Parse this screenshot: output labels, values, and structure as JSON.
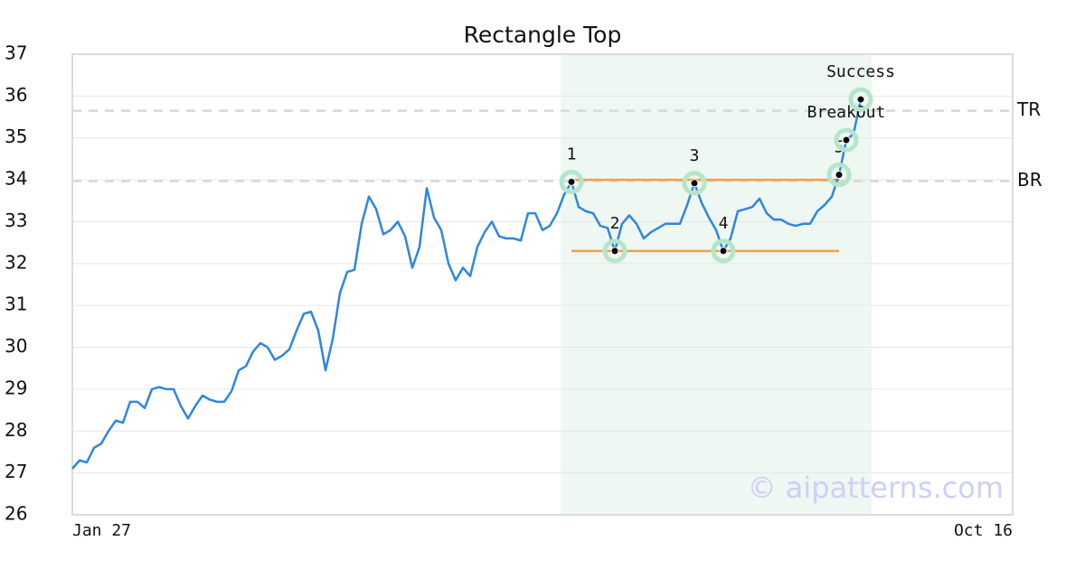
{
  "chart_data": {
    "type": "line",
    "title": "Rectangle Top",
    "categories": [
      "Jan 27",
      null,
      null,
      null,
      null,
      null,
      null,
      null,
      null,
      null,
      null,
      null,
      null,
      null,
      null,
      null,
      null,
      null,
      null,
      null,
      null,
      null,
      null,
      null,
      null,
      null,
      null,
      null,
      null,
      null,
      null,
      null,
      null,
      null,
      null,
      null,
      null,
      null,
      null,
      null,
      null,
      null,
      null,
      null,
      null,
      null,
      null,
      null,
      null,
      null,
      null,
      null,
      null,
      null,
      null,
      null,
      null,
      null,
      null,
      null,
      null,
      null,
      null,
      null,
      null,
      null,
      null,
      null,
      null,
      null,
      null,
      null,
      null,
      null,
      null,
      null,
      null,
      null,
      null,
      null,
      null,
      null,
      null,
      null,
      null,
      null,
      null,
      null,
      null,
      null,
      null,
      null,
      null,
      null,
      null,
      null,
      null,
      null,
      null,
      null,
      null,
      null,
      null,
      null,
      null,
      null,
      null,
      null,
      null,
      null,
      null,
      null,
      null,
      null,
      null,
      null,
      null,
      null,
      null,
      null,
      null,
      null,
      null,
      null,
      null,
      null,
      null,
      null,
      null,
      null,
      "Oct 16"
    ],
    "values": [
      27.1,
      27.3,
      27.25,
      27.6,
      27.7,
      28.0,
      28.25,
      28.2,
      28.7,
      28.7,
      28.55,
      29.0,
      29.05,
      29.0,
      29.0,
      28.6,
      28.3,
      28.6,
      28.85,
      28.75,
      28.7,
      28.7,
      28.95,
      29.45,
      29.55,
      29.9,
      30.1,
      30.0,
      29.7,
      29.8,
      29.95,
      30.4,
      30.8,
      30.85,
      30.4,
      29.45,
      30.2,
      31.3,
      31.8,
      31.85,
      32.95,
      33.6,
      33.3,
      32.7,
      32.8,
      33.0,
      32.65,
      31.9,
      32.4,
      33.8,
      33.1,
      32.8,
      32.0,
      31.6,
      31.9,
      31.7,
      32.4,
      32.75,
      33.0,
      32.65,
      32.6,
      32.6,
      32.55,
      33.2,
      33.2,
      32.8,
      32.9,
      33.2,
      33.65,
      33.95,
      33.35,
      33.25,
      33.2,
      32.9,
      32.85,
      32.3,
      32.95,
      33.15,
      32.95,
      32.6,
      32.75,
      32.85,
      32.95,
      32.95,
      32.95,
      33.4,
      33.92,
      33.45,
      33.1,
      32.8,
      32.3,
      32.6,
      33.25,
      33.3,
      33.35,
      33.55,
      33.2,
      33.05,
      33.05,
      32.95,
      32.9,
      32.95,
      32.95,
      33.25,
      33.4,
      33.6,
      34.12,
      34.95,
      35.1,
      35.92,
      null,
      null,
      null,
      null,
      null,
      null,
      null,
      null,
      null,
      null,
      null,
      null,
      null,
      null,
      null,
      null,
      null,
      null,
      null,
      null,
      null
    ],
    "color": "#2f86e0",
    "ylim": [
      26,
      37
    ],
    "yticks": [
      26,
      27,
      28,
      29,
      30,
      31,
      32,
      33,
      34,
      35,
      36,
      37
    ],
    "grid": true,
    "highlight_span": [
      67.5,
      110.5
    ],
    "highlight_color": "#eef7f2",
    "hlines": [
      {
        "label": "TR",
        "value": 35.65
      },
      {
        "label": "BR",
        "value": 33.97
      }
    ],
    "segments": [
      {
        "x": [
          69,
          106
        ],
        "y": 34.0
      },
      {
        "x": [
          69,
          106
        ],
        "y": 32.3
      }
    ],
    "segment_color": "#f0a04a",
    "annotations": [
      {
        "text": "1",
        "x": 69,
        "y": 33.95
      },
      {
        "text": "2",
        "x": 75,
        "y": 32.3
      },
      {
        "text": "3",
        "x": 86,
        "y": 33.92
      },
      {
        "text": "4",
        "x": 90,
        "y": 32.3
      },
      {
        "text": "5",
        "x": 106,
        "y": 34.12
      },
      {
        "text": "BreakOut",
        "x": 107,
        "y": 34.95
      },
      {
        "text": "Success",
        "x": 109,
        "y": 35.92
      }
    ],
    "watermark": "© aipatterns.com"
  }
}
